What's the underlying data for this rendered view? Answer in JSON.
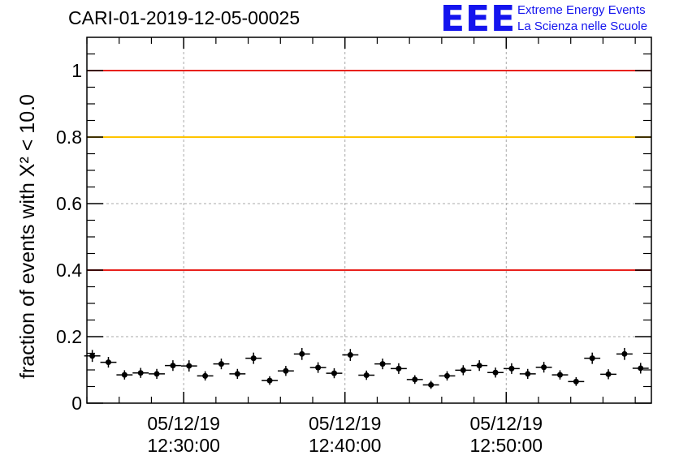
{
  "header": {
    "title": "CARI-01-2019-12-05-00025",
    "logo_mark": "EEE",
    "logo_line1": "Extreme Energy Events",
    "logo_line2": "La Scienza nelle Scuole"
  },
  "chart_data": {
    "type": "scatter",
    "title": "CARI-01-2019-12-05-00025",
    "ylabel": "fraction of events with Χ² < 10.0",
    "xlabel": "",
    "xlim": [
      "05/12/19 12:24:00",
      "05/12/19 12:59:00"
    ],
    "ylim": [
      0,
      1.1
    ],
    "yticks": [
      "0",
      "0.2",
      "0.4",
      "0.6",
      "0.8",
      "1"
    ],
    "xticks": [
      {
        "date": "05/12/19",
        "time": "12:30:00"
      },
      {
        "date": "05/12/19",
        "time": "12:40:00"
      },
      {
        "date": "05/12/19",
        "time": "12:50:00"
      }
    ],
    "grid": true,
    "reference_lines": [
      {
        "y": 1.0,
        "color": "#e8211c"
      },
      {
        "y": 0.8,
        "color": "#ffc400"
      },
      {
        "y": 0.4,
        "color": "#e8211c"
      }
    ],
    "series": [
      {
        "marker_color": "#000000",
        "x_error": 0.5,
        "x": [
          "05/12/19 12:24:20",
          "05/12/19 12:25:20",
          "05/12/19 12:26:20",
          "05/12/19 12:27:20",
          "05/12/19 12:28:20",
          "05/12/19 12:29:20",
          "05/12/19 12:30:20",
          "05/12/19 12:31:20",
          "05/12/19 12:32:20",
          "05/12/19 12:33:20",
          "05/12/19 12:34:20",
          "05/12/19 12:35:20",
          "05/12/19 12:36:20",
          "05/12/19 12:37:20",
          "05/12/19 12:38:20",
          "05/12/19 12:39:20",
          "05/12/19 12:40:20",
          "05/12/19 12:41:20",
          "05/12/19 12:42:20",
          "05/12/19 12:43:20",
          "05/12/19 12:44:20",
          "05/12/19 12:45:20",
          "05/12/19 12:46:20",
          "05/12/19 12:47:20",
          "05/12/19 12:48:20",
          "05/12/19 12:49:20",
          "05/12/19 12:50:20",
          "05/12/19 12:51:20",
          "05/12/19 12:52:20",
          "05/12/19 12:53:20",
          "05/12/19 12:54:20",
          "05/12/19 12:55:20",
          "05/12/19 12:56:20",
          "05/12/19 12:57:20",
          "05/12/19 12:58:20"
        ],
        "y": [
          0.142,
          0.123,
          0.085,
          0.091,
          0.088,
          0.113,
          0.112,
          0.082,
          0.118,
          0.088,
          0.135,
          0.068,
          0.097,
          0.148,
          0.107,
          0.09,
          0.145,
          0.084,
          0.118,
          0.104,
          0.071,
          0.055,
          0.082,
          0.099,
          0.113,
          0.092,
          0.104,
          0.088,
          0.108,
          0.085,
          0.065,
          0.135,
          0.087,
          0.148,
          0.105
        ],
        "y_error": [
          0.018,
          0.016,
          0.014,
          0.015,
          0.015,
          0.016,
          0.017,
          0.014,
          0.016,
          0.015,
          0.017,
          0.013,
          0.015,
          0.018,
          0.016,
          0.015,
          0.018,
          0.014,
          0.016,
          0.016,
          0.013,
          0.012,
          0.014,
          0.015,
          0.016,
          0.015,
          0.016,
          0.015,
          0.016,
          0.014,
          0.013,
          0.017,
          0.015,
          0.018,
          0.016
        ]
      }
    ]
  }
}
